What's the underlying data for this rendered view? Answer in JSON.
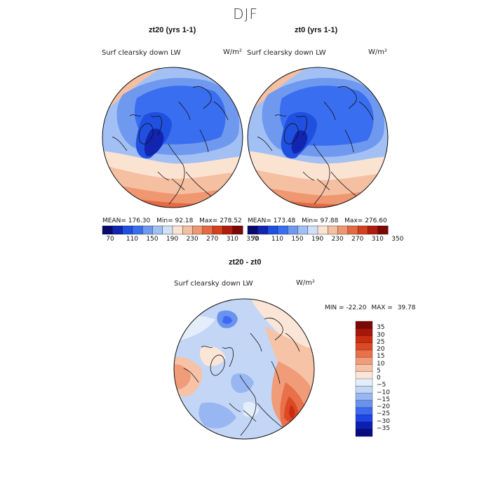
{
  "page_title": "DJF",
  "colors": {
    "abs_scale": [
      "#08086e",
      "#1225b0",
      "#2050e0",
      "#3a6ef0",
      "#6f98ef",
      "#a2c0f4",
      "#cfe0f8",
      "#fbe3d2",
      "#f5bfa2",
      "#ef9770",
      "#e56a44",
      "#d7401e",
      "#b01d0c",
      "#7d0606"
    ],
    "diff_scale": [
      "#0a0a80",
      "#0b1fb5",
      "#1f45e5",
      "#3d6af0",
      "#6a93ee",
      "#98b7f2",
      "#c3d6f6",
      "#e4eefa",
      "#fbe5d6",
      "#f6c3a7",
      "#f09c78",
      "#e8704a",
      "#dc4a25",
      "#c92d12",
      "#a8160a",
      "#7d0606"
    ],
    "land_line": "#111111"
  },
  "panels": [
    {
      "title": "zt20 (yrs 1-1)",
      "variable": "Surf clearsky down LW",
      "units": "W/m²",
      "stats": {
        "mean_label": "MEAN=",
        "mean": "176.30",
        "min_label": "Min=",
        "min": "92.18",
        "max_label": "Max=",
        "max": "278.52"
      },
      "colorbar_ticks": [
        "70",
        "110",
        "150",
        "190",
        "230",
        "270",
        "310",
        "350"
      ]
    },
    {
      "title": "zt0 (yrs 1-1)",
      "variable": "Surf clearsky down LW",
      "units": "W/m²",
      "stats": {
        "mean_label": "MEAN=",
        "mean": "173.48",
        "min_label": "Min=",
        "min": "97.88",
        "max_label": "Max=",
        "max": "276.60"
      },
      "colorbar_ticks": [
        "70",
        "110",
        "150",
        "190",
        "230",
        "270",
        "310",
        "350"
      ]
    },
    {
      "title": "zt20 - zt0",
      "variable": "Surf clearsky down LW",
      "units": "W/m²",
      "stats": {
        "min_label": "MIN =",
        "min": "-22.20",
        "max_label": "MAX =",
        "max": "39.78"
      },
      "colorbar_ticks": [
        "35",
        "30",
        "25",
        "20",
        "15",
        "10",
        "5",
        "0",
        "−5",
        "−10",
        "−15",
        "−20",
        "−25",
        "−30",
        "−35"
      ]
    }
  ],
  "chart_data": [
    {
      "type": "heatmap",
      "projection": "north polar stereographic",
      "title": "zt20 (yrs 1-1)",
      "variable": "Surf clearsky down LW",
      "units": "W/m²",
      "levels": [
        70,
        90,
        110,
        130,
        150,
        170,
        190,
        210,
        230,
        250,
        270,
        290,
        310,
        330,
        350
      ],
      "mean": 176.3,
      "min": 92.18,
      "max": 278.52
    },
    {
      "type": "heatmap",
      "projection": "north polar stereographic",
      "title": "zt0 (yrs 1-1)",
      "variable": "Surf clearsky down LW",
      "units": "W/m²",
      "levels": [
        70,
        90,
        110,
        130,
        150,
        170,
        190,
        210,
        230,
        250,
        270,
        290,
        310,
        330,
        350
      ],
      "mean": 173.48,
      "min": 97.88,
      "max": 276.6
    },
    {
      "type": "heatmap",
      "projection": "north polar stereographic",
      "title": "zt20 - zt0",
      "variable": "Surf clearsky down LW",
      "units": "W/m²",
      "levels": [
        -35,
        -30,
        -25,
        -20,
        -15,
        -10,
        -5,
        0,
        5,
        10,
        15,
        20,
        25,
        30,
        35
      ],
      "min": -22.2,
      "max": 39.78
    }
  ]
}
